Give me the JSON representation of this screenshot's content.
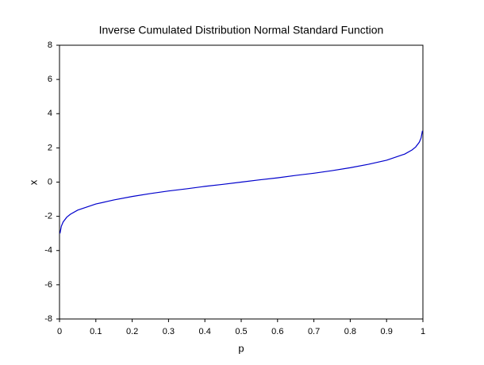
{
  "chart_data": {
    "type": "line",
    "title": "Inverse Cumulated Distribution Normal Standard Function",
    "x_label": "p",
    "y_label": "x",
    "x": [
      0.0013,
      0.005,
      0.01,
      0.02,
      0.03,
      0.05,
      0.1,
      0.15,
      0.2,
      0.25,
      0.3,
      0.35,
      0.4,
      0.45,
      0.5,
      0.55,
      0.6,
      0.65,
      0.7,
      0.75,
      0.8,
      0.85,
      0.9,
      0.95,
      0.97,
      0.98,
      0.99,
      0.995,
      0.9987
    ],
    "series": [
      {
        "name": "x",
        "color": "#0000cc",
        "values": [
          -3.0,
          -2.58,
          -2.33,
          -2.05,
          -1.88,
          -1.64,
          -1.28,
          -1.04,
          -0.84,
          -0.67,
          -0.52,
          -0.39,
          -0.25,
          -0.13,
          0,
          0.13,
          0.25,
          0.39,
          0.52,
          0.67,
          0.84,
          1.04,
          1.28,
          1.64,
          1.88,
          2.05,
          2.33,
          2.58,
          3.0
        ]
      }
    ],
    "xlim": [
      0,
      1
    ],
    "xticks": [
      0,
      0.1,
      0.2,
      0.3,
      0.4,
      0.5,
      0.6,
      0.7,
      0.8,
      0.9,
      1
    ],
    "ylim": [
      -8,
      8
    ],
    "yticks": [
      -8,
      -6,
      -4,
      -2,
      0,
      2,
      4,
      6,
      8
    ]
  }
}
